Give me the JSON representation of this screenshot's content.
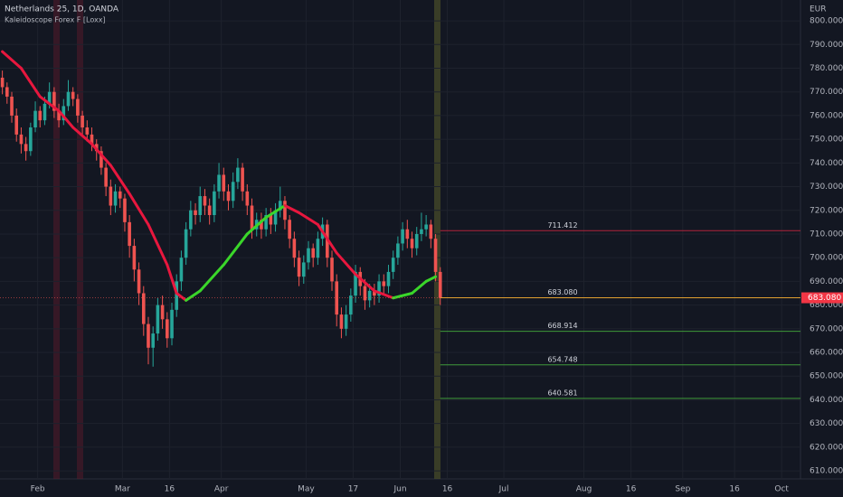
{
  "chart_data": {
    "type": "candlestick",
    "title": "Netherlands 25, 1D, OANDA",
    "subtitle": "Kaleidoscope Forex F [Loxx]",
    "y_axis_label": "EUR",
    "up_color": "#26a69a",
    "down_color": "#ef5350",
    "open": [
      776,
      772,
      768,
      760,
      752,
      748,
      745,
      755,
      762,
      758,
      765,
      770,
      762,
      758,
      764,
      770,
      767,
      760,
      755,
      752,
      748,
      745,
      738,
      730,
      722,
      728,
      725,
      715,
      705,
      695,
      685,
      672,
      662,
      668,
      680,
      674,
      666,
      678,
      690,
      700,
      712,
      720,
      718,
      726,
      722,
      718,
      728,
      735,
      728,
      724,
      732,
      738,
      728,
      722,
      712,
      716,
      712,
      718,
      714,
      720,
      724,
      716,
      708,
      700,
      692,
      698,
      704,
      700,
      708,
      714,
      700,
      690,
      676,
      670,
      676,
      684,
      694,
      688,
      682,
      686,
      684,
      690,
      688,
      694,
      700,
      706,
      712,
      708,
      704,
      710,
      712,
      714,
      708,
      694
    ],
    "high": [
      779,
      774,
      770,
      763,
      755,
      751,
      757,
      766,
      764,
      768,
      774,
      772,
      765,
      767,
      775,
      772,
      769,
      762,
      758,
      755,
      750,
      747,
      740,
      733,
      731,
      730,
      727,
      718,
      708,
      698,
      688,
      675,
      671,
      683,
      684,
      677,
      681,
      693,
      703,
      715,
      724,
      723,
      730,
      729,
      725,
      731,
      740,
      738,
      731,
      736,
      742,
      740,
      731,
      725,
      719,
      719,
      721,
      721,
      723,
      730,
      726,
      718,
      711,
      703,
      701,
      707,
      706,
      711,
      717,
      716,
      703,
      693,
      679,
      680,
      687,
      697,
      696,
      691,
      689,
      689,
      693,
      693,
      697,
      703,
      709,
      715,
      716,
      711,
      713,
      719,
      718,
      716,
      710,
      696
    ],
    "low": [
      769,
      765,
      757,
      749,
      744,
      741,
      743,
      753,
      755,
      756,
      763,
      759,
      755,
      756,
      762,
      764,
      757,
      752,
      749,
      745,
      741,
      735,
      726,
      718,
      719,
      721,
      711,
      700,
      690,
      680,
      667,
      655,
      654,
      665,
      670,
      662,
      663,
      675,
      686,
      697,
      709,
      714,
      715,
      718,
      714,
      715,
      725,
      724,
      720,
      721,
      729,
      724,
      718,
      708,
      709,
      708,
      709,
      710,
      711,
      717,
      712,
      704,
      696,
      688,
      689,
      695,
      696,
      697,
      705,
      696,
      686,
      671,
      666,
      667,
      673,
      681,
      684,
      678,
      679,
      680,
      681,
      684,
      685,
      691,
      697,
      703,
      704,
      700,
      701,
      707,
      709,
      704,
      690,
      680
    ],
    "close": [
      772,
      768,
      760,
      752,
      748,
      745,
      755,
      762,
      758,
      765,
      770,
      762,
      758,
      764,
      770,
      767,
      760,
      755,
      752,
      748,
      745,
      738,
      730,
      722,
      728,
      725,
      715,
      705,
      695,
      685,
      672,
      662,
      668,
      680,
      674,
      666,
      678,
      690,
      700,
      712,
      720,
      718,
      726,
      722,
      718,
      728,
      735,
      728,
      724,
      732,
      738,
      728,
      722,
      712,
      716,
      712,
      718,
      714,
      720,
      724,
      716,
      708,
      700,
      692,
      698,
      704,
      700,
      708,
      714,
      700,
      690,
      676,
      670,
      676,
      684,
      694,
      688,
      682,
      686,
      684,
      690,
      688,
      694,
      700,
      706,
      712,
      708,
      704,
      710,
      712,
      714,
      708,
      694,
      683
    ],
    "indicator": {
      "x": [
        0,
        4,
        8,
        12,
        15,
        19,
        23,
        27,
        31,
        35,
        37,
        39,
        42,
        47,
        52,
        56,
        60,
        63,
        67,
        71,
        75,
        79,
        83,
        87,
        90,
        92
      ],
      "values": [
        787,
        780,
        768,
        762,
        755,
        748,
        739,
        727,
        714,
        697,
        685,
        682,
        686,
        697,
        710,
        717,
        722,
        719,
        714,
        702,
        693,
        686,
        683,
        685,
        690,
        692
      ],
      "down_color": "#e8173e",
      "up_color": "#3ad62a"
    },
    "levels": {
      "values": [
        711.412,
        683.08,
        668.914,
        654.748,
        640.581
      ],
      "value_labels": [
        "711.412",
        "683.080",
        "668.914",
        "654.748",
        "640.581"
      ],
      "colors": [
        "#b2223a",
        "#e0a030",
        "#3f9a3a",
        "#3f9a3a",
        "#3f9a3a"
      ]
    },
    "xlim": [
      0,
      170
    ],
    "xticks": [
      {
        "value": 8,
        "label": "Feb"
      },
      {
        "value": 26,
        "label": "Mar"
      },
      {
        "value": 36,
        "label": "16"
      },
      {
        "value": 47,
        "label": "Apr"
      },
      {
        "value": 65,
        "label": "May"
      },
      {
        "value": 75,
        "label": "17"
      },
      {
        "value": 85,
        "label": "Jun"
      },
      {
        "value": 95,
        "label": "16"
      },
      {
        "value": 107,
        "label": "Jul"
      },
      {
        "value": 124,
        "label": "Aug"
      },
      {
        "value": 134,
        "label": "16"
      },
      {
        "value": 145,
        "label": "Sep"
      },
      {
        "value": 156,
        "label": "16"
      },
      {
        "value": 166,
        "label": "Oct"
      }
    ],
    "ylim": [
      606.6,
      808.8
    ],
    "yticks": [
      {
        "value": 610,
        "label": "610.000"
      },
      {
        "value": 620,
        "label": "620.000"
      },
      {
        "value": 630,
        "label": "630.000"
      },
      {
        "value": 640,
        "label": "640.000"
      },
      {
        "value": 650,
        "label": "650.000"
      },
      {
        "value": 660,
        "label": "660.000"
      },
      {
        "value": 670,
        "label": "670.000"
      },
      {
        "value": 680,
        "label": "680.000"
      },
      {
        "value": 690,
        "label": "690.000"
      },
      {
        "value": 700,
        "label": "700.000"
      },
      {
        "value": 710,
        "label": "710.000"
      },
      {
        "value": 720,
        "label": "720.000"
      },
      {
        "value": 730,
        "label": "730.000"
      },
      {
        "value": 740,
        "label": "740.000"
      },
      {
        "value": 750,
        "label": "750.000"
      },
      {
        "value": 760,
        "label": "760.000"
      },
      {
        "value": 770,
        "label": "770.000"
      },
      {
        "value": 780,
        "label": "780.000"
      },
      {
        "value": 790,
        "label": "790.000"
      },
      {
        "value": 800,
        "label": "800.000"
      }
    ],
    "grid": true
  }
}
